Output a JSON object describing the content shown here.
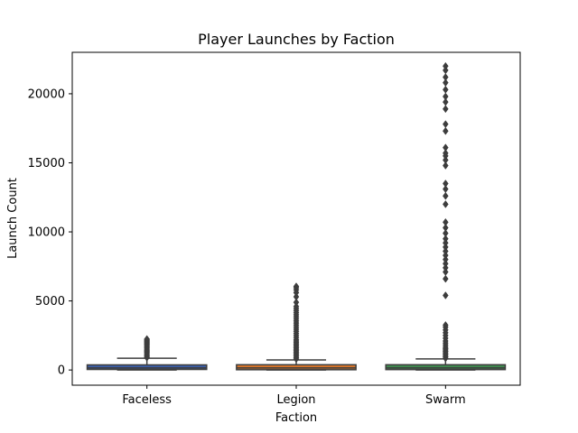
{
  "chart_data": {
    "type": "box",
    "title": "Player Launches by Faction",
    "xlabel": "Faction",
    "ylabel": "Launch Count",
    "categories": [
      "Faceless",
      "Legion",
      "Swarm"
    ],
    "ylim": [
      -1100,
      23000
    ],
    "yticks": [
      0,
      5000,
      10000,
      15000,
      20000
    ],
    "ytick_labels": [
      "0",
      "5000",
      "10000",
      "15000",
      "20000"
    ],
    "grid": false,
    "boxes": [
      {
        "category": "Faceless",
        "color": "#3b5ea8",
        "whisker_low": 0,
        "q1": 40,
        "median": 150,
        "q3": 370,
        "whisker_high": 850,
        "outliers": [
          900,
          980,
          1050,
          1120,
          1200,
          1280,
          1350,
          1420,
          1500,
          1580,
          1650,
          1720,
          1800,
          1870,
          1940,
          2000,
          2060,
          2120,
          2180,
          2240
        ]
      },
      {
        "category": "Legion",
        "color": "#d8762b",
        "whisker_low": 0,
        "q1": 20,
        "median": 150,
        "q3": 380,
        "whisker_high": 730,
        "outliers": [
          800,
          900,
          1000,
          1100,
          1200,
          1300,
          1400,
          1500,
          1600,
          1700,
          1800,
          1900,
          2000,
          2100,
          2200,
          2350,
          2500,
          2650,
          2800,
          2950,
          3100,
          3250,
          3400,
          3550,
          3700,
          3850,
          4000,
          4150,
          4300,
          4450,
          4600,
          4900,
          5300,
          5600,
          5800,
          5950,
          6050
        ]
      },
      {
        "category": "Swarm",
        "color": "#3f8a4f",
        "whisker_low": 0,
        "q1": 30,
        "median": 150,
        "q3": 380,
        "whisker_high": 800,
        "outliers": [
          850,
          950,
          1050,
          1150,
          1250,
          1350,
          1450,
          1550,
          1650,
          1800,
          1950,
          2100,
          2300,
          2500,
          2700,
          2900,
          3100,
          3250,
          5400,
          6600,
          7100,
          7400,
          7700,
          8000,
          8300,
          8600,
          8900,
          9200,
          9500,
          9900,
          10300,
          10700,
          12000,
          12600,
          13100,
          13500,
          14800,
          15200,
          15500,
          15700,
          16100,
          17300,
          17800,
          18900,
          19400,
          19800,
          20300,
          20800,
          21200,
          21700,
          22000
        ]
      }
    ]
  }
}
